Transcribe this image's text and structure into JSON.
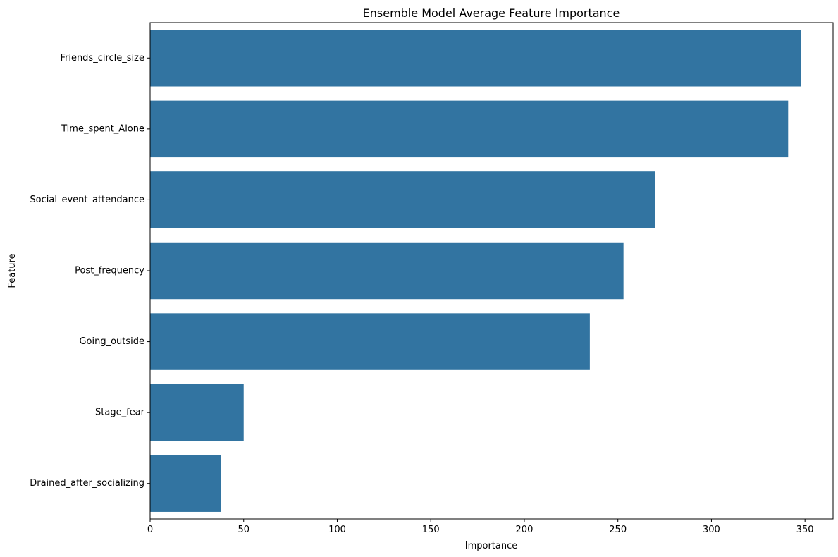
{
  "chart_data": {
    "type": "bar",
    "orientation": "horizontal",
    "title": "Ensemble Model Average Feature Importance",
    "xlabel": "Importance",
    "ylabel": "Feature",
    "categories": [
      "Friends_circle_size",
      "Time_spent_Alone",
      "Social_event_attendance",
      "Post_frequency",
      "Going_outside",
      "Stage_fear",
      "Drained_after_socializing"
    ],
    "values": [
      348,
      341,
      270,
      253,
      235,
      50,
      38
    ],
    "xlim": [
      0,
      365
    ],
    "xticks": [
      0,
      50,
      100,
      150,
      200,
      250,
      300,
      350
    ],
    "grid": false,
    "bar_color": "#3274a1"
  }
}
